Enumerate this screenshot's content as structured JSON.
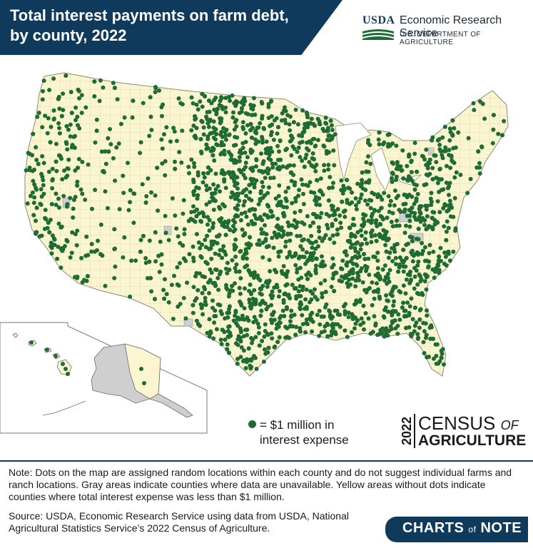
{
  "header": {
    "title_line1": "Total interest payments on farm debt,",
    "title_line2": "by county, 2022",
    "agency_short": "USDA",
    "agency_name": "Economic Research Service",
    "department": "U.S. DEPARTMENT OF AGRICULTURE"
  },
  "map": {
    "legend_line1": "= $1 million in",
    "legend_line2": "interest expense",
    "colors": {
      "dot": "#1e6b34",
      "county_fill": "#fbf6cf",
      "unavailable": "#cfcfcf",
      "background": "#ffffff"
    },
    "insets": [
      "Hawaii",
      "Alaska"
    ]
  },
  "branding": {
    "census_year": "2022",
    "census_word": "CENSUS",
    "census_of": "OF",
    "census_ag": "AGRICULTURE",
    "charts_word1": "CHARTS",
    "charts_of": "of",
    "charts_word2": "NOTE"
  },
  "note": "Note: Dots on the map are assigned random locations within each county and do not suggest individual farms and ranch locations. Gray areas indicate counties where data are unavailable. Yellow areas without dots indicate counties where total interest expense was less than $1 million.",
  "source": "Source: USDA, Economic Research Service using data from USDA, National Agricultural Statistics Service’s 2022 Census of Agriculture."
}
